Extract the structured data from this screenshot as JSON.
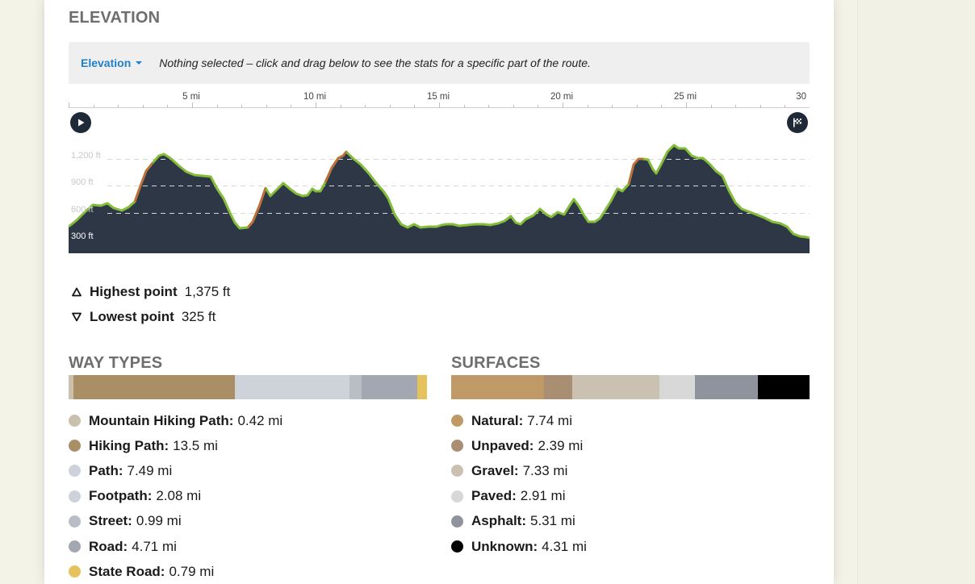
{
  "elevation": {
    "title": "ELEVATION",
    "dropdown_label": "Elevation",
    "selection_message": "Nothing selected – click and drag below to see the stats for a specific part of the route.",
    "distance_labels": [
      "5 mi",
      "10 mi",
      "15 mi",
      "20 mi",
      "25 mi",
      "30"
    ],
    "elevation_labels": [
      "1,200 ft",
      "900 ft",
      "600 ft",
      "300 ft"
    ],
    "start_icon": "play-icon",
    "finish_icon": "finish-flag-icon"
  },
  "stats": {
    "highest_label": "Highest point",
    "highest_value": "1,375 ft",
    "lowest_label": "Lowest point",
    "lowest_value": "325 ft"
  },
  "way_types": {
    "title": "WAY TYPES",
    "items": [
      {
        "label": "Mountain Hiking Path:",
        "value": "0.42 mi",
        "color": "#cbbfae",
        "miles": 0.42
      },
      {
        "label": "Hiking Path:",
        "value": "13.5 mi",
        "color": "#a98e66",
        "miles": 13.5
      },
      {
        "label": "Path:",
        "value": "7.49 mi",
        "color": "#cdd2db",
        "miles": 7.49
      },
      {
        "label": "Footpath:",
        "value": "2.08 mi",
        "color": "#cdd2db",
        "miles": 2.08
      },
      {
        "label": "Street:",
        "value": "0.99 mi",
        "color": "#b9bec6",
        "miles": 0.99
      },
      {
        "label": "Road:",
        "value": "4.71 mi",
        "color": "#a3a7b1",
        "miles": 4.71
      },
      {
        "label": "State Road:",
        "value": "0.79 mi",
        "color": "#e6c25d",
        "miles": 0.79
      }
    ]
  },
  "surfaces": {
    "title": "SURFACES",
    "items": [
      {
        "label": "Natural:",
        "value": "7.74 mi",
        "color": "#c09a66",
        "miles": 7.74
      },
      {
        "label": "Unpaved:",
        "value": "2.39 mi",
        "color": "#a98e72",
        "miles": 2.39
      },
      {
        "label": "Gravel:",
        "value": "7.33 mi",
        "color": "#cbc1b3",
        "miles": 7.33
      },
      {
        "label": "Paved:",
        "value": "2.91 mi",
        "color": "#d8d8d8",
        "miles": 2.91
      },
      {
        "label": "Asphalt:",
        "value": "5.31 mi",
        "color": "#8e939e",
        "miles": 5.31
      },
      {
        "label": "Unknown:",
        "value": "4.31 mi",
        "color": "#000000",
        "miles": 4.31
      }
    ]
  },
  "colors": {
    "accent": "#1f7fc9",
    "profile_fill": "#2d3746",
    "profile_line": "#84bd3a",
    "steep_line": "#c9683c"
  }
}
